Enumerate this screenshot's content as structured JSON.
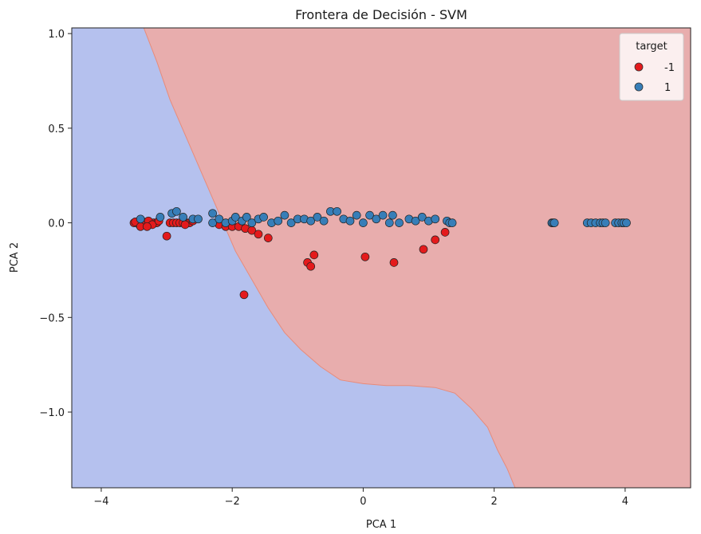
{
  "chart_data": {
    "type": "scatter",
    "title": "Frontera de Decisión - SVM",
    "xlabel": "PCA 1",
    "ylabel": "PCA 2",
    "xlim": [
      -4.45,
      5.0
    ],
    "ylim": [
      -1.4,
      1.03
    ],
    "x_ticks": [
      -4,
      -2,
      0,
      2,
      4
    ],
    "y_ticks": [
      1.0,
      0.5,
      0.0,
      -0.5,
      -1.0
    ],
    "x_tick_labels": [
      "−4",
      "−2",
      "0",
      "2",
      "4"
    ],
    "y_tick_labels": [
      "1.0",
      "0.5",
      "0.0",
      "−0.5",
      "−1.0"
    ],
    "grid": false,
    "legend": {
      "title": "target",
      "placement": "top-right",
      "entries": [
        {
          "label": "-1",
          "color": "#e41a1c"
        },
        {
          "label": "1",
          "color": "#377eb8"
        }
      ]
    },
    "regions": [
      {
        "class": "-1",
        "color": "#e8adad"
      },
      {
        "class": "1",
        "color": "#b5c1ee"
      }
    ],
    "decision_boundary": [
      [
        -3.35,
        1.03
      ],
      [
        -3.15,
        0.85
      ],
      [
        -2.95,
        0.65
      ],
      [
        -2.7,
        0.45
      ],
      [
        -2.45,
        0.25
      ],
      [
        -2.2,
        0.05
      ],
      [
        -1.95,
        -0.15
      ],
      [
        -1.7,
        -0.3
      ],
      [
        -1.45,
        -0.45
      ],
      [
        -1.2,
        -0.58
      ],
      [
        -0.95,
        -0.67
      ],
      [
        -0.65,
        -0.76
      ],
      [
        -0.35,
        -0.83
      ],
      [
        0.0,
        -0.85
      ],
      [
        0.35,
        -0.86
      ],
      [
        0.7,
        -0.86
      ],
      [
        1.1,
        -0.87
      ],
      [
        1.4,
        -0.9
      ],
      [
        1.65,
        -0.98
      ],
      [
        1.9,
        -1.08
      ],
      [
        2.05,
        -1.2
      ],
      [
        2.2,
        -1.3
      ],
      [
        2.32,
        -1.4
      ]
    ],
    "series": [
      {
        "name": "-1",
        "color": "#e41a1c",
        "points": [
          [
            -3.5,
            0.0
          ],
          [
            -3.45,
            0.0
          ],
          [
            -3.4,
            0.0
          ],
          [
            -3.35,
            0.0
          ],
          [
            -3.3,
            0.0
          ],
          [
            -3.25,
            0.0
          ],
          [
            -3.2,
            0.0
          ],
          [
            -3.15,
            0.0
          ],
          [
            -3.42,
            -0.01
          ],
          [
            -3.38,
            0.01
          ],
          [
            -3.48,
            0.005
          ],
          [
            -3.33,
            -0.005
          ],
          [
            -3.28,
            0.01
          ],
          [
            -3.22,
            -0.01
          ],
          [
            -3.12,
            0.01
          ],
          [
            -3.4,
            -0.02
          ],
          [
            -3.3,
            -0.02
          ],
          [
            -2.95,
            0.0
          ],
          [
            -2.9,
            0.0
          ],
          [
            -2.85,
            0.0
          ],
          [
            -2.8,
            0.0
          ],
          [
            -2.75,
            0.0
          ],
          [
            -2.7,
            0.0
          ],
          [
            -2.65,
            0.0
          ],
          [
            -2.6,
            0.01
          ],
          [
            -2.72,
            -0.01
          ],
          [
            -2.2,
            -0.01
          ],
          [
            -2.1,
            -0.02
          ],
          [
            -2.0,
            -0.02
          ],
          [
            -1.9,
            -0.02
          ],
          [
            -1.8,
            -0.03
          ],
          [
            -1.7,
            -0.04
          ],
          [
            -1.6,
            -0.06
          ],
          [
            -1.45,
            -0.08
          ],
          [
            -3.0,
            -0.07
          ],
          [
            -1.82,
            -0.38
          ],
          [
            -0.85,
            -0.21
          ],
          [
            -0.8,
            -0.23
          ],
          [
            -0.75,
            -0.17
          ],
          [
            0.03,
            -0.18
          ],
          [
            0.47,
            -0.21
          ],
          [
            0.92,
            -0.14
          ],
          [
            1.1,
            -0.09
          ],
          [
            1.25,
            -0.05
          ]
        ]
      },
      {
        "name": "1",
        "color": "#377eb8",
        "points": [
          [
            -3.4,
            0.02
          ],
          [
            -3.1,
            0.03
          ],
          [
            -2.92,
            0.05
          ],
          [
            -2.85,
            0.06
          ],
          [
            -2.75,
            0.03
          ],
          [
            -2.6,
            0.02
          ],
          [
            -2.52,
            0.02
          ],
          [
            -2.3,
            0.05
          ],
          [
            -2.3,
            0.0
          ],
          [
            -2.2,
            0.02
          ],
          [
            -2.1,
            0.0
          ],
          [
            -2.0,
            0.01
          ],
          [
            -1.95,
            0.03
          ],
          [
            -1.85,
            0.01
          ],
          [
            -1.78,
            0.03
          ],
          [
            -1.7,
            0.0
          ],
          [
            -1.6,
            0.02
          ],
          [
            -1.52,
            0.03
          ],
          [
            -1.4,
            0.0
          ],
          [
            -1.3,
            0.01
          ],
          [
            -1.2,
            0.04
          ],
          [
            -1.1,
            0.0
          ],
          [
            -1.0,
            0.02
          ],
          [
            -0.9,
            0.02
          ],
          [
            -0.8,
            0.01
          ],
          [
            -0.7,
            0.03
          ],
          [
            -0.6,
            0.01
          ],
          [
            -0.5,
            0.06
          ],
          [
            -0.4,
            0.06
          ],
          [
            -0.3,
            0.02
          ],
          [
            -0.2,
            0.01
          ],
          [
            -0.1,
            0.04
          ],
          [
            0.0,
            0.0
          ],
          [
            0.1,
            0.04
          ],
          [
            0.2,
            0.02
          ],
          [
            0.3,
            0.04
          ],
          [
            0.4,
            0.0
          ],
          [
            0.45,
            0.04
          ],
          [
            0.55,
            0.0
          ],
          [
            0.7,
            0.02
          ],
          [
            0.8,
            0.01
          ],
          [
            0.9,
            0.03
          ],
          [
            1.0,
            0.01
          ],
          [
            1.1,
            0.02
          ],
          [
            1.28,
            0.01
          ],
          [
            1.32,
            0.0
          ],
          [
            1.36,
            0.0
          ],
          [
            2.88,
            0.0
          ],
          [
            2.9,
            0.0
          ],
          [
            2.92,
            0.0
          ],
          [
            3.42,
            0.0
          ],
          [
            3.48,
            0.0
          ],
          [
            3.55,
            0.0
          ],
          [
            3.62,
            0.0
          ],
          [
            3.66,
            0.0
          ],
          [
            3.7,
            0.0
          ],
          [
            3.85,
            0.0
          ],
          [
            3.9,
            0.0
          ],
          [
            3.95,
            0.0
          ],
          [
            3.98,
            0.0
          ],
          [
            4.02,
            0.0
          ]
        ]
      }
    ]
  }
}
